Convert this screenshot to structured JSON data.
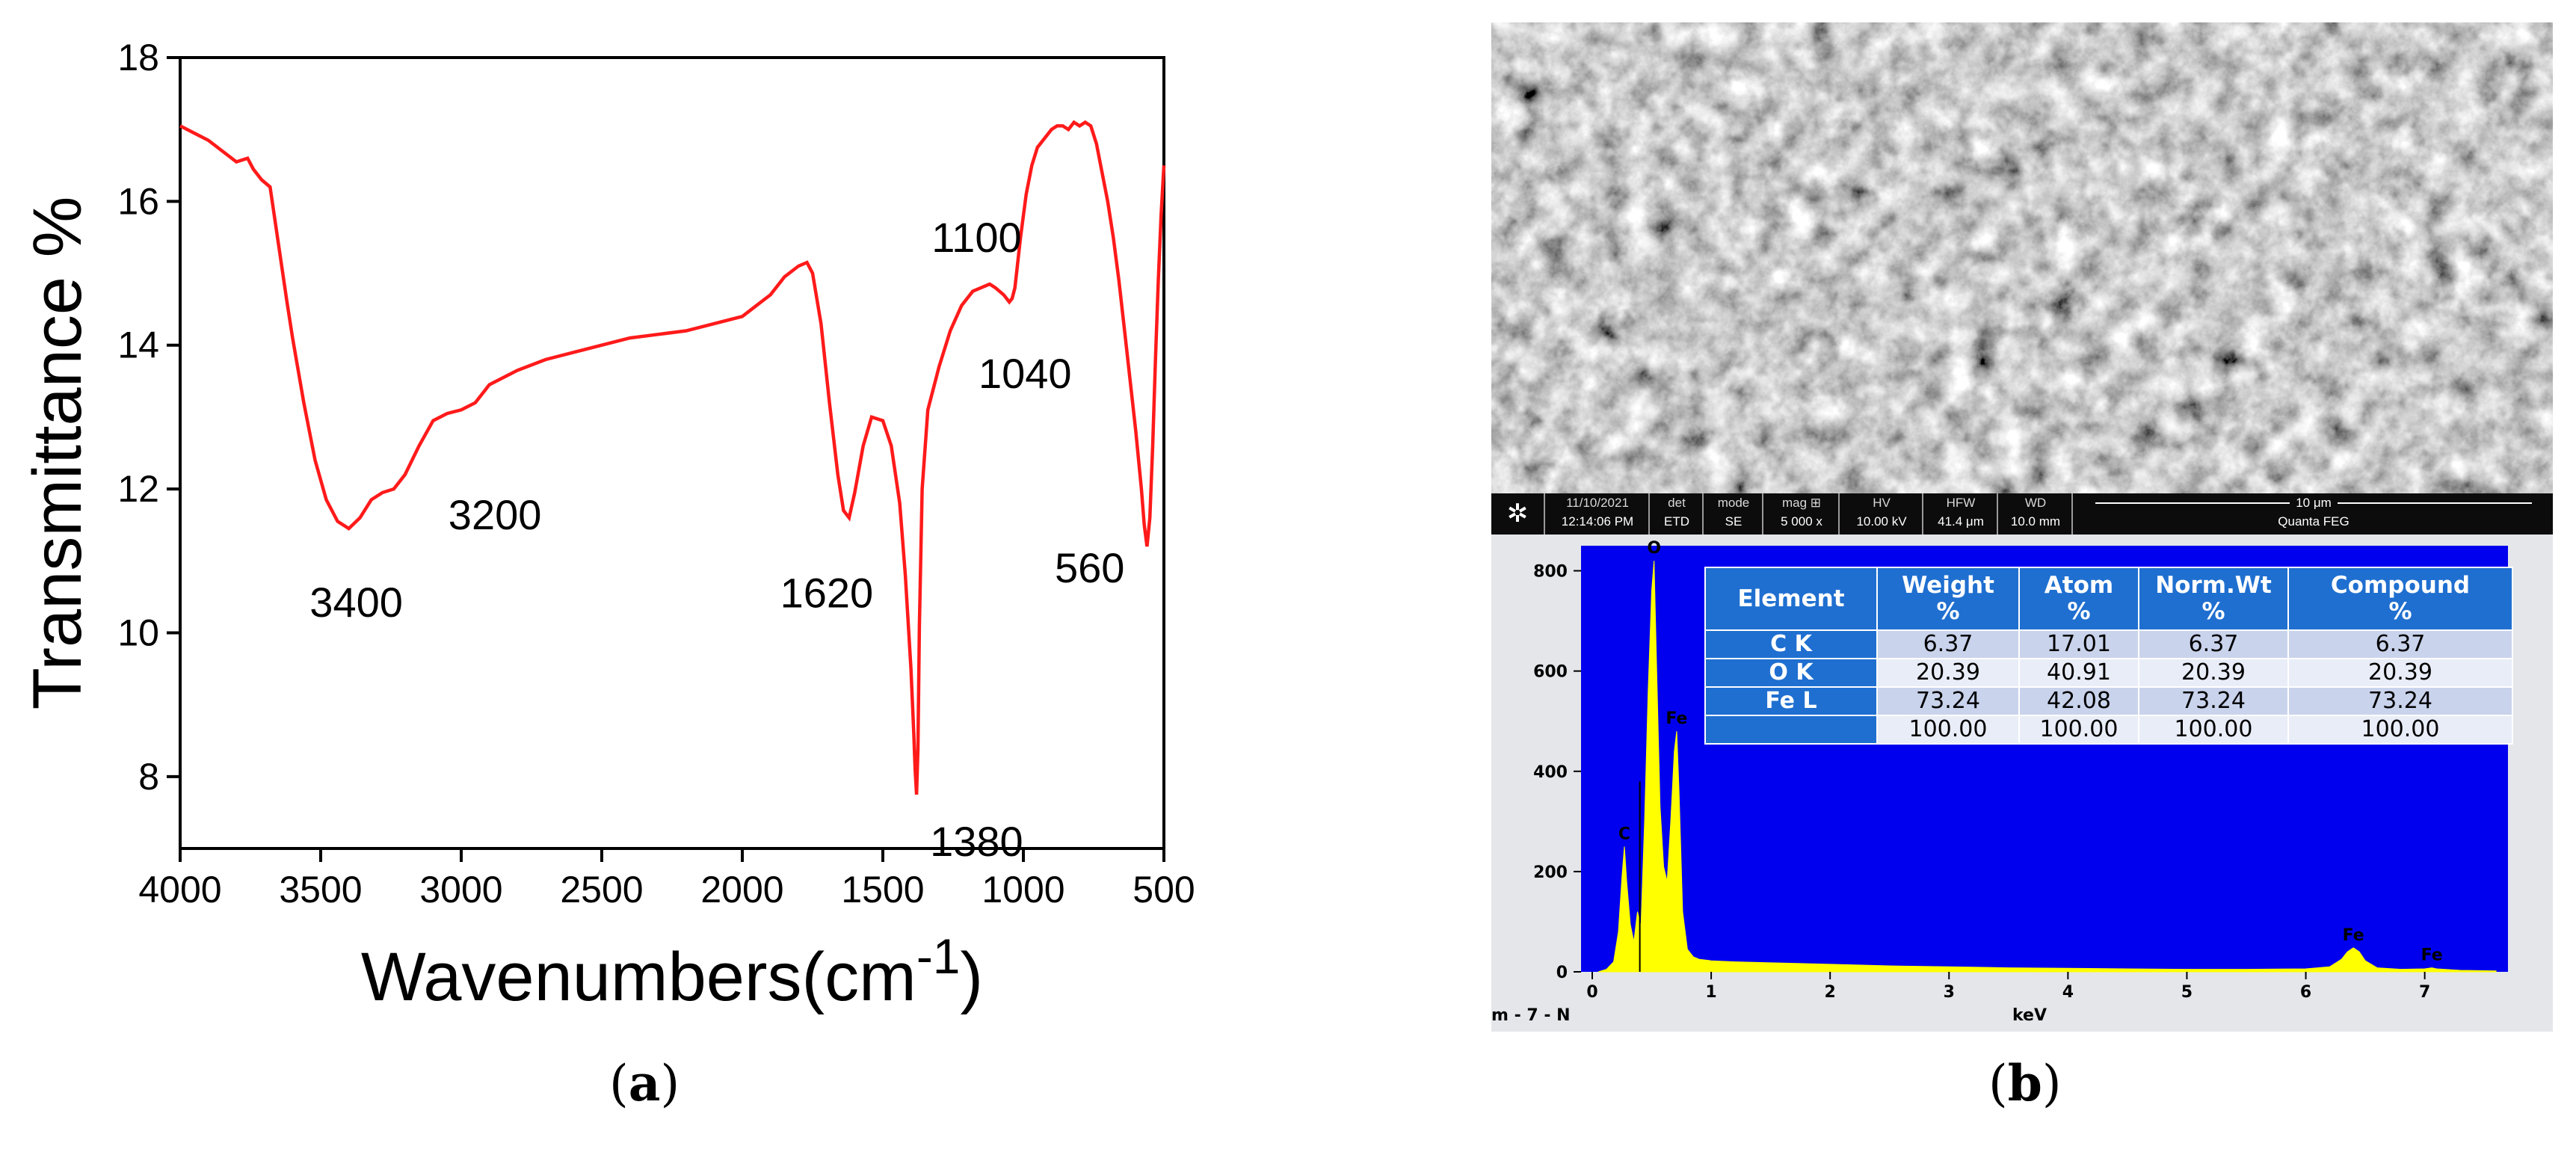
{
  "panel_labels": {
    "a": "a",
    "b": "b"
  },
  "chart_data": [
    {
      "type": "line",
      "xlabel": "Wavenumbers(cm",
      "xlabel_sup": "-1",
      "xlabel_suffix": ")",
      "ylabel": "Transmittance %",
      "xlim": [
        4000,
        500
      ],
      "ylim": [
        7,
        18
      ],
      "x_ticks": [
        4000,
        3500,
        3000,
        2500,
        2000,
        1500,
        1000,
        500
      ],
      "y_ticks": [
        8,
        10,
        12,
        14,
        16,
        18
      ],
      "line_color": "#ff1a1a",
      "grid": false,
      "series": [
        {
          "x": [
            4000,
            3900,
            3800,
            3760,
            3740,
            3710,
            3680,
            3650,
            3620,
            3600,
            3560,
            3520,
            3480,
            3440,
            3400,
            3360,
            3320,
            3280,
            3240,
            3200,
            3150,
            3100,
            3050,
            3000,
            2950,
            2900,
            2850,
            2800,
            2700,
            2600,
            2500,
            2400,
            2300,
            2200,
            2100,
            2000,
            1950,
            1900,
            1850,
            1800,
            1770,
            1750,
            1720,
            1690,
            1660,
            1640,
            1620,
            1600,
            1570,
            1540,
            1500,
            1470,
            1440,
            1420,
            1400,
            1390,
            1385,
            1380,
            1375,
            1370,
            1360,
            1340,
            1300,
            1260,
            1220,
            1180,
            1150,
            1120,
            1100,
            1070,
            1050,
            1040,
            1030,
            1010,
            990,
            970,
            950,
            920,
            900,
            880,
            860,
            840,
            820,
            800,
            780,
            760,
            740,
            720,
            700,
            680,
            660,
            640,
            620,
            600,
            580,
            570,
            560,
            550,
            540,
            530,
            520,
            510,
            500
          ],
          "y": [
            17.05,
            16.85,
            16.55,
            16.6,
            16.45,
            16.3,
            16.2,
            15.4,
            14.6,
            14.1,
            13.2,
            12.4,
            11.85,
            11.55,
            11.45,
            11.6,
            11.85,
            11.95,
            12.0,
            12.2,
            12.6,
            12.95,
            13.05,
            13.1,
            13.2,
            13.45,
            13.55,
            13.65,
            13.8,
            13.9,
            14.0,
            14.1,
            14.15,
            14.2,
            14.3,
            14.4,
            14.55,
            14.7,
            14.95,
            15.1,
            15.15,
            15.0,
            14.3,
            13.2,
            12.2,
            11.7,
            11.6,
            11.95,
            12.6,
            13.0,
            12.95,
            12.6,
            11.8,
            10.8,
            9.5,
            8.6,
            8.1,
            7.75,
            8.4,
            10.1,
            12.0,
            13.1,
            13.7,
            14.2,
            14.55,
            14.75,
            14.8,
            14.85,
            14.8,
            14.7,
            14.6,
            14.65,
            14.8,
            15.5,
            16.1,
            16.5,
            16.75,
            16.9,
            17.0,
            17.05,
            17.05,
            17.0,
            17.1,
            17.05,
            17.1,
            17.05,
            16.8,
            16.4,
            16.0,
            15.5,
            14.9,
            14.2,
            13.5,
            12.8,
            12.0,
            11.5,
            11.2,
            11.6,
            12.6,
            13.8,
            14.9,
            15.8,
            16.5
          ]
        }
      ],
      "annotations": [
        {
          "text": "3400",
          "x": 3400,
          "y": 11.45
        },
        {
          "text": "3200",
          "x": 3200,
          "y": 12.0
        },
        {
          "text": "1620",
          "x": 1620,
          "y": 11.6
        },
        {
          "text": "1380",
          "x": 1380,
          "y": 7.75
        },
        {
          "text": "1100",
          "x": 1100,
          "y": 14.8
        },
        {
          "text": "1040",
          "x": 1040,
          "y": 14.65
        },
        {
          "text": "560",
          "x": 560,
          "y": 11.2
        }
      ]
    },
    {
      "type": "bar",
      "title": "",
      "xlabel": "keV",
      "xlim": [
        0,
        7.7
      ],
      "ylim": [
        0,
        850
      ],
      "x_ticks": [
        0,
        1,
        2,
        3,
        4,
        5,
        6,
        7
      ],
      "y_ticks": [
        0,
        200,
        400,
        600,
        800
      ],
      "background_color": "#0000ee",
      "fill_color": "#ffff00",
      "peaks": [
        {
          "label": "C",
          "x": 0.27,
          "y": 250
        },
        {
          "label": "O",
          "x": 0.52,
          "y": 820
        },
        {
          "label": "Fe",
          "x": 0.71,
          "y": 480
        },
        {
          "label": "Fe",
          "x": 6.4,
          "y": 48
        },
        {
          "label": "Fe",
          "x": 7.06,
          "y": 8
        }
      ],
      "spectrum": {
        "x": [
          0.05,
          0.12,
          0.18,
          0.22,
          0.25,
          0.27,
          0.29,
          0.32,
          0.35,
          0.38,
          0.41,
          0.44,
          0.47,
          0.5,
          0.52,
          0.54,
          0.57,
          0.6,
          0.63,
          0.66,
          0.69,
          0.71,
          0.73,
          0.76,
          0.8,
          0.85,
          0.9,
          1.0,
          1.2,
          1.5,
          2.0,
          2.5,
          3.0,
          3.5,
          4.0,
          4.5,
          5.0,
          5.5,
          6.0,
          6.2,
          6.3,
          6.35,
          6.4,
          6.45,
          6.5,
          6.6,
          6.8,
          7.0,
          7.06,
          7.1,
          7.3,
          7.6
        ],
        "y": [
          0,
          5,
          20,
          80,
          190,
          250,
          180,
          95,
          60,
          120,
          90,
          300,
          560,
          760,
          820,
          620,
          330,
          210,
          180,
          300,
          440,
          480,
          360,
          120,
          45,
          30,
          25,
          22,
          20,
          18,
          15,
          12,
          10,
          8,
          7,
          6,
          5,
          5,
          6,
          10,
          25,
          40,
          48,
          40,
          22,
          8,
          5,
          6,
          8,
          6,
          3,
          2
        ]
      }
    }
  ],
  "sem_bar": {
    "date_time_top": "11/10/2021",
    "date_time_bot": "12:14:06 PM",
    "det_top": "det",
    "det_bot": "ETD",
    "mode_top": "mode",
    "mode_bot": "SE",
    "mag_top": "mag ⊞",
    "mag_bot": "5 000 x",
    "hv_top": "HV",
    "hv_bot": "10.00 kV",
    "hfw_top": "HFW",
    "hfw_bot": "41.4 μm",
    "wd_top": "WD",
    "wd_bot": "10.0 mm",
    "scale_label": "10 μm",
    "instrument": "Quanta FEG"
  },
  "eds_footer_left": "m - 7 - N",
  "eds_table": {
    "headers": [
      {
        "line1": "Element",
        "line2": ""
      },
      {
        "line1": "Weight",
        "line2": "%"
      },
      {
        "line1": "Atom",
        "line2": "%"
      },
      {
        "line1": "Norm.Wt",
        "line2": "%"
      },
      {
        "line1": "Compound",
        "line2": "%"
      }
    ],
    "rows": [
      [
        "C K",
        "6.37",
        "17.01",
        "6.37",
        "6.37"
      ],
      [
        "O K",
        "20.39",
        "40.91",
        "20.39",
        "20.39"
      ],
      [
        "Fe L",
        "73.24",
        "42.08",
        "73.24",
        "73.24"
      ],
      [
        "",
        "100.00",
        "100.00",
        "100.00",
        "100.00"
      ]
    ]
  }
}
